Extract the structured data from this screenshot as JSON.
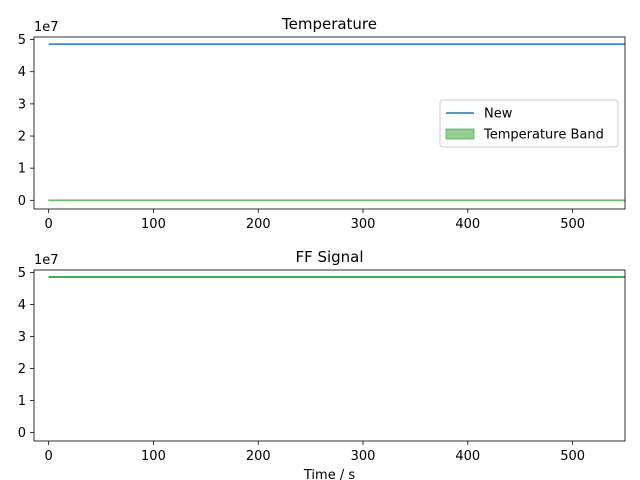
{
  "chart_data": [
    {
      "type": "line",
      "title": "Temperature",
      "xlabel": "",
      "ylabel": "",
      "y_offset_label": "1e7",
      "xlim": [
        -14,
        550
      ],
      "ylim": [
        -2700000,
        50800000
      ],
      "x_ticks": [
        0,
        100,
        200,
        300,
        400,
        500
      ],
      "y_ticks": [
        0,
        10000000,
        20000000,
        30000000,
        40000000,
        50000000
      ],
      "y_tick_labels": [
        "0",
        "1",
        "2",
        "3",
        "4",
        "5"
      ],
      "legend": {
        "position": "center-right",
        "entries": [
          "New",
          "Temperature Band"
        ]
      },
      "series": [
        {
          "name": "New",
          "kind": "line",
          "color": "#1f77b4",
          "x": [
            0,
            550
          ],
          "y": [
            48600000,
            48600000
          ]
        },
        {
          "name": "Temperature Band",
          "kind": "band",
          "color": "#2ca02c",
          "x": [
            0,
            550
          ],
          "y_low": [
            0,
            0
          ],
          "y_high": [
            0,
            0
          ]
        }
      ]
    },
    {
      "type": "line",
      "title": "FF Signal",
      "xlabel": "Time / s",
      "ylabel": "",
      "y_offset_label": "1e7",
      "xlim": [
        -14,
        550
      ],
      "ylim": [
        -2700000,
        50800000
      ],
      "x_ticks": [
        0,
        100,
        200,
        300,
        400,
        500
      ],
      "y_ticks": [
        0,
        10000000,
        20000000,
        30000000,
        40000000,
        50000000
      ],
      "y_tick_labels": [
        "0",
        "1",
        "2",
        "3",
        "4",
        "5"
      ],
      "series": [
        {
          "kind": "line",
          "color": "#1f77b4",
          "x": [
            0,
            550
          ],
          "y": [
            48600000,
            48600000
          ]
        },
        {
          "kind": "line",
          "color": "#2ca02c",
          "x": [
            0,
            550
          ],
          "y": [
            48600000,
            48600000
          ]
        }
      ]
    }
  ]
}
